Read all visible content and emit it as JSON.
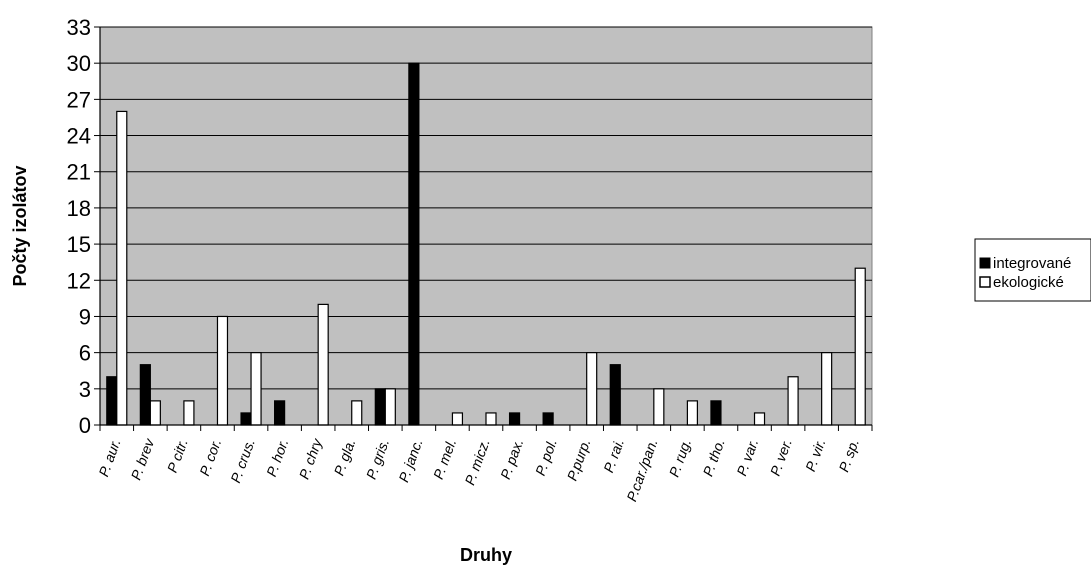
{
  "chart_data": {
    "type": "bar",
    "xlabel": "Druhy",
    "ylabel": "Počty izolátov",
    "ylim": [
      0,
      33
    ],
    "yticks": [
      "0",
      "3",
      "6",
      "9",
      "12",
      "15",
      "18",
      "21",
      "24",
      "27",
      "30",
      "33"
    ],
    "grid": true,
    "legend_position": "right",
    "plot_background": "#c0c0c0",
    "categories": [
      "P. aur.",
      "P. brev",
      "P citr.",
      "P. cor.",
      "P. crus.",
      "P. hor.",
      "P. chry",
      "P. gla.",
      "P. gris.",
      "P. janc.",
      "P. mel.",
      "P. micz.",
      "P. pax.",
      "P. pol.",
      "P.purp.",
      "P. rai.",
      "P.car./pan.",
      "P. rug.",
      "P. tho.",
      "P. var.",
      "P. ver.",
      "P. vir.",
      "P. sp."
    ],
    "series": [
      {
        "name": "integrované",
        "color": "#000000",
        "values": [
          4,
          5,
          0,
          0,
          1,
          2,
          0,
          0,
          3,
          30,
          0,
          0,
          1,
          1,
          0,
          5,
          0,
          0,
          2,
          0,
          0,
          0,
          0
        ]
      },
      {
        "name": "ekologické",
        "color": "#ffffff",
        "values": [
          26,
          2,
          2,
          9,
          6,
          0,
          10,
          2,
          3,
          0,
          1,
          1,
          0,
          0,
          6,
          0,
          3,
          2,
          0,
          1,
          4,
          6,
          13
        ]
      }
    ]
  }
}
